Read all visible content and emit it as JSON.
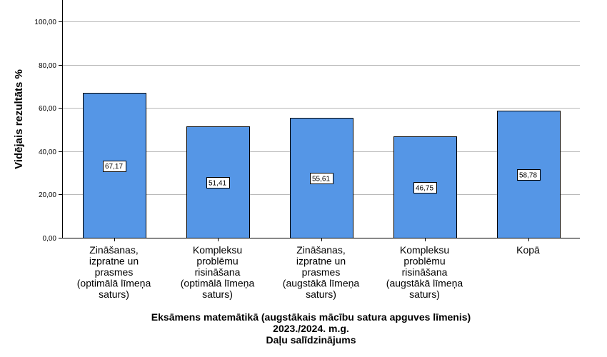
{
  "chart_data": {
    "type": "bar",
    "categories": [
      [
        "Zināšanas,",
        "izpratne un",
        "prasmes",
        "(optimālā līmeņa",
        "saturs)"
      ],
      [
        "Kompleksu",
        "problēmu",
        "risināšana",
        "(optimālā līmeņa",
        "saturs)"
      ],
      [
        "Zināšanas,",
        "izpratne un",
        "prasmes",
        "(augstākā līmeņa",
        "saturs)"
      ],
      [
        "Kompleksu",
        "problēmu",
        "risināšana",
        "(augstākā līmeņa",
        "saturs)"
      ],
      [
        "Kopā"
      ]
    ],
    "values": [
      67.17,
      51.41,
      55.61,
      46.75,
      58.78
    ],
    "data_labels": [
      "67,17",
      "51,41",
      "55,61",
      "46,75",
      "58,78"
    ],
    "ylabel": "Vidējais rezultāts %",
    "xlabel": [
      "Eksāmens matemātikā (augstākais mācību satura apguves līmenis)",
      "2023./2024. m.g.",
      "Daļu salīdzinājums"
    ],
    "yticks": [
      0,
      20,
      40,
      60,
      80,
      100
    ],
    "ytick_labels": [
      "0,00",
      "20,00",
      "40,00",
      "60,00",
      "80,00",
      "100,00"
    ],
    "ylim": [
      0,
      110
    ],
    "grid": true,
    "bar_color": "#5596e6",
    "gridline_color": "#b9b9b9"
  }
}
